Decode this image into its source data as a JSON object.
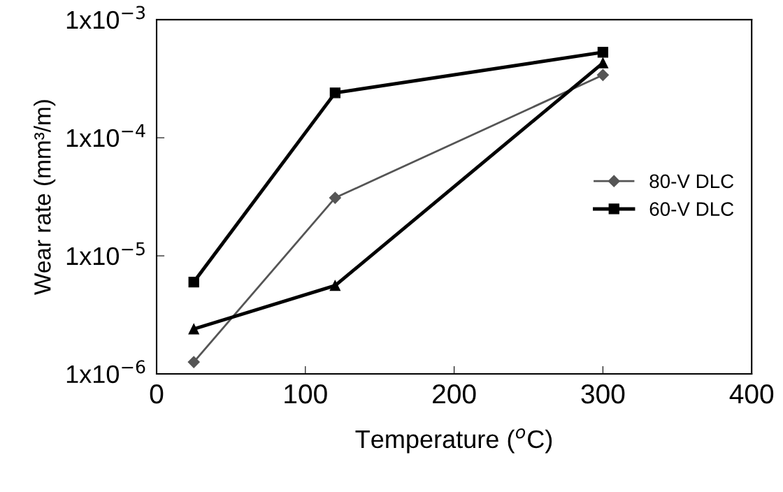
{
  "chart_data": {
    "type": "line",
    "xlabel": "Temperature ($^{o}$C)",
    "ylabel": "Wear rate (mm³/m)",
    "log": "y",
    "xlim": [
      0,
      400
    ],
    "xticks": [
      0,
      100,
      200,
      300,
      400
    ],
    "ylim": [
      1e-06,
      0.001
    ],
    "yticks": [
      {
        "value": 1e-06,
        "label": "1x10$^{−6}$"
      },
      {
        "value": 1e-05,
        "label": "1x10$^{−5}$"
      },
      {
        "value": 0.0001,
        "label": "1x10$^{−4}$"
      },
      {
        "value": 0.001,
        "label": "1x10$^{−3}$"
      }
    ],
    "x": [
      25,
      120,
      300
    ],
    "grid": false,
    "legend": "right",
    "line_style": "solid",
    "series": [
      {
        "name": "80-V DLC",
        "color": "#555555",
        "marker": "diamond",
        "values": [
          1.26e-06,
          3.1e-05,
          0.00034
        ]
      },
      {
        "name": "60-V DLC",
        "color": "#000000",
        "marker": "square",
        "values": [
          6e-06,
          0.00024,
          0.00053
        ]
      },
      {
        "color": "#000000",
        "marker": "triangle",
        "values": [
          2.4e-06,
          5.6e-06,
          0.00043
        ]
      }
    ]
  }
}
